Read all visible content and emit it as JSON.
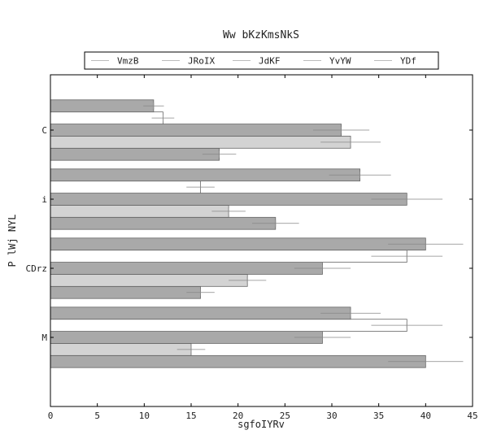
{
  "chart_data": {
    "type": "bar",
    "orientation": "horizontal",
    "title": "Ww bKzKmsNkS",
    "xlabel": "sgfoIYRv",
    "ylabel": "P lWj NYL",
    "xlim": [
      0,
      45
    ],
    "ylim": [
      -1,
      3.8
    ],
    "x_ticks": [
      "0",
      "5",
      "10",
      "15",
      "20",
      "25",
      "30",
      "35",
      "40",
      "45"
    ],
    "categories": [
      "M",
      "CDrz",
      "i",
      "C"
    ],
    "legend_position": "top-center",
    "grid": false,
    "series": [
      {
        "name": "VmzB",
        "color": "#a9a9a9",
        "values": [
          40,
          16,
          24,
          18
        ],
        "errors": [
          4,
          1.5,
          2.5,
          1.8
        ]
      },
      {
        "name": "JRoIX",
        "color": "#d3d3d3",
        "values": [
          15,
          21,
          19,
          32
        ],
        "errors": [
          1.5,
          2,
          1.8,
          3.2
        ]
      },
      {
        "name": "JdKF",
        "color": "#a9a9a9",
        "values": [
          29,
          29,
          38,
          31
        ],
        "errors": [
          3,
          3,
          3.8,
          3
        ]
      },
      {
        "name": "YvYW",
        "color": "#ffffff",
        "values": [
          38,
          38,
          16,
          12
        ],
        "errors": [
          3.8,
          3.8,
          1.5,
          1.2
        ]
      },
      {
        "name": "YDf",
        "color": "#a9a9a9",
        "values": [
          32,
          40,
          33,
          11
        ],
        "errors": [
          3.2,
          4,
          3.3,
          1.1
        ]
      }
    ]
  }
}
